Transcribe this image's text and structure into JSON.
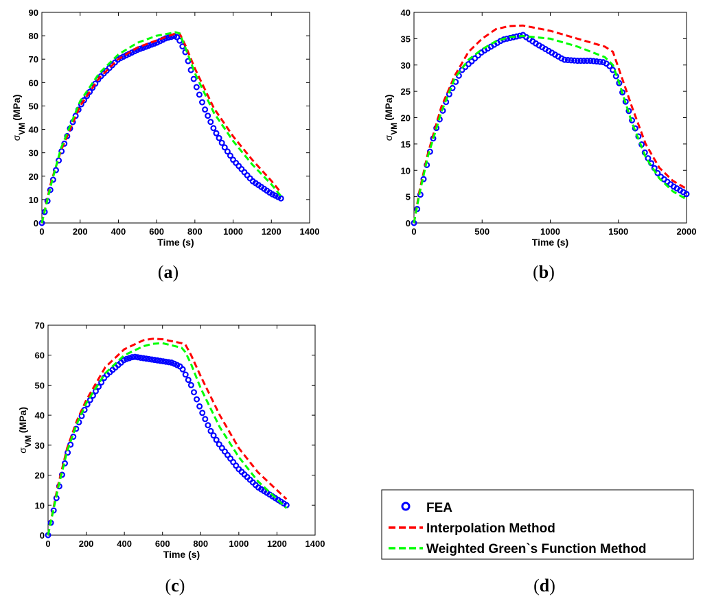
{
  "legend": {
    "entries": [
      {
        "label": "FEA",
        "color": "#0000ff",
        "style": "markers"
      },
      {
        "label": "Interpolation Method",
        "color": "#ff0000",
        "style": "dashed"
      },
      {
        "label": "Weighted Green`s Function Method",
        "color": "#00ff00",
        "style": "dashed"
      }
    ]
  },
  "chart_data": [
    {
      "type": "line",
      "caption_letter": "a",
      "xlabel": "Time (s)",
      "ylabel": {
        "sym": "σ",
        "sub": "VM",
        "unit": "(MPa)"
      },
      "xlim": [
        0,
        1400
      ],
      "ylim": [
        0,
        90
      ],
      "xticks": [
        0,
        200,
        400,
        600,
        800,
        1000,
        1200,
        1400
      ],
      "yticks": [
        0,
        10,
        20,
        30,
        40,
        50,
        60,
        70,
        80,
        90
      ],
      "series": [
        {
          "name": "FEA",
          "x": [
            0,
            25,
            50,
            100,
            150,
            200,
            300,
            400,
            500,
            600,
            650,
            700,
            720,
            750,
            800,
            850,
            900,
            950,
            1000,
            1100,
            1200,
            1250
          ],
          "values": [
            0,
            8,
            16,
            30,
            41,
            50,
            62,
            70,
            74,
            77,
            79,
            80,
            78,
            73,
            60,
            49,
            40,
            33,
            27,
            18,
            12.5,
            10.5
          ]
        },
        {
          "name": "Interpolation Method",
          "x": [
            0,
            50,
            100,
            200,
            300,
            400,
            500,
            600,
            700,
            720,
            750,
            800,
            900,
            1000,
            1100,
            1200,
            1250
          ],
          "values": [
            0,
            18,
            31,
            50,
            62,
            70,
            75,
            78,
            81,
            81,
            76,
            66,
            49,
            37,
            27,
            18,
            13
          ]
        },
        {
          "name": "Weighted Green`s Function Method",
          "x": [
            0,
            50,
            100,
            200,
            300,
            400,
            500,
            600,
            700,
            720,
            750,
            800,
            900,
            1000,
            1100,
            1200,
            1250
          ],
          "values": [
            0,
            17,
            32,
            52,
            64,
            72,
            77,
            80,
            81.5,
            81,
            75,
            64,
            47,
            35,
            25,
            16.5,
            11.5
          ]
        }
      ]
    },
    {
      "type": "line",
      "caption_letter": "b",
      "xlabel": "Time (s)",
      "ylabel": {
        "sym": "σ",
        "sub": "VM",
        "unit": "(MPa)"
      },
      "xlim": [
        0,
        2000
      ],
      "ylim": [
        0,
        40
      ],
      "xticks": [
        0,
        500,
        1000,
        1500,
        2000
      ],
      "yticks": [
        0,
        5,
        10,
        15,
        20,
        25,
        30,
        35,
        40
      ],
      "series": [
        {
          "name": "FEA",
          "x": [
            0,
            40,
            80,
            150,
            250,
            350,
            500,
            650,
            800,
            900,
            1000,
            1100,
            1200,
            1300,
            1400,
            1450,
            1500,
            1600,
            1700,
            1800,
            1900,
            2000
          ],
          "values": [
            0,
            4.5,
            9.5,
            17,
            24,
            29,
            32.5,
            34.8,
            35.7,
            34,
            32.5,
            31,
            30.8,
            30.8,
            30.5,
            29.5,
            27,
            19.5,
            13,
            9,
            7,
            5.5
          ]
        },
        {
          "name": "Interpolation Method",
          "x": [
            0,
            40,
            100,
            200,
            300,
            400,
            500,
            600,
            700,
            800,
            1000,
            1200,
            1400,
            1460,
            1500,
            1600,
            1700,
            1800,
            1900,
            2000
          ],
          "values": [
            0,
            6,
            13,
            22,
            28,
            32.5,
            35,
            36.8,
            37.4,
            37.5,
            36.5,
            35,
            33.5,
            32.5,
            29.5,
            22,
            15,
            10.5,
            8,
            6.5
          ]
        },
        {
          "name": "Weighted Green`s Function Method",
          "x": [
            0,
            40,
            100,
            200,
            300,
            400,
            500,
            600,
            700,
            800,
            1000,
            1200,
            1400,
            1460,
            1500,
            1600,
            1700,
            1800,
            1900,
            2000
          ],
          "values": [
            0,
            5.5,
            12.5,
            21,
            27.5,
            31,
            33,
            34.5,
            35.3,
            35.5,
            35,
            33.5,
            31.5,
            30,
            27,
            19,
            12.5,
            8.5,
            6,
            4.5
          ]
        }
      ]
    },
    {
      "type": "line",
      "caption_letter": "c",
      "xlabel": "Time (s)",
      "ylabel": {
        "sym": "σ",
        "sub": "VM",
        "unit": "(MPa)"
      },
      "xlim": [
        0,
        1400
      ],
      "ylim": [
        0,
        70
      ],
      "xticks": [
        0,
        200,
        400,
        600,
        800,
        1000,
        1200,
        1400
      ],
      "yticks": [
        0,
        10,
        20,
        30,
        40,
        50,
        60,
        70
      ],
      "series": [
        {
          "name": "FEA",
          "x": [
            0,
            25,
            50,
            100,
            150,
            200,
            300,
            400,
            450,
            500,
            600,
            650,
            700,
            750,
            800,
            850,
            900,
            1000,
            1100,
            1200,
            1250
          ],
          "values": [
            0,
            7,
            14,
            27,
            36,
            43,
            53,
            58.5,
            59.5,
            59,
            58,
            57.5,
            56,
            50,
            42,
            35,
            30,
            22,
            16,
            12,
            10
          ]
        },
        {
          "name": "Interpolation Method",
          "x": [
            0,
            50,
            100,
            150,
            200,
            300,
            400,
            500,
            550,
            600,
            700,
            720,
            750,
            800,
            900,
            1000,
            1100,
            1200,
            1250
          ],
          "values": [
            0,
            16,
            29,
            38,
            45,
            56,
            62,
            65,
            65.5,
            65.3,
            64,
            63.5,
            60,
            53,
            40,
            29,
            21,
            15,
            12
          ]
        },
        {
          "name": "Weighted Green`s Function Method",
          "x": [
            0,
            50,
            100,
            150,
            200,
            300,
            400,
            500,
            550,
            600,
            700,
            720,
            750,
            800,
            900,
            1000,
            1100,
            1200,
            1250
          ],
          "values": [
            0,
            15,
            28,
            37,
            44,
            54,
            60,
            63,
            63.8,
            64,
            62.5,
            61,
            57,
            49,
            36,
            26,
            18,
            12,
            9
          ]
        }
      ]
    }
  ]
}
